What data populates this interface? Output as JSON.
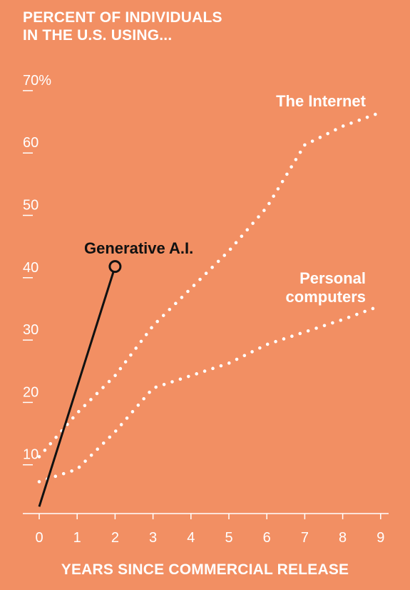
{
  "chart_data": {
    "type": "line",
    "title_lines": [
      "PERCENT OF INDIVIDUALS",
      "IN THE U.S. USING..."
    ],
    "xlabel": "YEARS SINCE COMMERCIAL RELEASE",
    "ylabel": "",
    "xlim": [
      0,
      9
    ],
    "ylim": [
      0,
      70
    ],
    "x_ticks": [
      "0",
      "1",
      "2",
      "3",
      "4",
      "5",
      "6",
      "7",
      "8",
      "9"
    ],
    "y_ticks": [
      "10",
      "20",
      "30",
      "40",
      "50",
      "60",
      "70%"
    ],
    "y_tick_values": [
      10,
      20,
      30,
      40,
      50,
      60,
      70
    ],
    "grid": false,
    "series": [
      {
        "name": "The Internet",
        "label_lines": [
          "The Internet"
        ],
        "style": "dotted",
        "color": "#ffffff",
        "x": [
          0,
          1,
          2,
          3,
          4,
          5,
          6,
          7,
          8,
          8.9
        ],
        "y": [
          9,
          16,
          22,
          30,
          36,
          42,
          49,
          59,
          62,
          64
        ]
      },
      {
        "name": "Personal computers",
        "label_lines": [
          "Personal",
          "computers"
        ],
        "style": "dotted",
        "color": "#ffffff",
        "x": [
          0,
          0.5,
          1,
          2,
          3,
          4,
          5,
          6,
          7,
          8,
          8.9
        ],
        "y": [
          5,
          6,
          7,
          13,
          20,
          22,
          24,
          27,
          29,
          31,
          33
        ]
      },
      {
        "name": "Generative A.I.",
        "label_lines": [
          "Generative A.I."
        ],
        "style": "solid",
        "color": "#111111",
        "x": [
          0,
          2
        ],
        "y": [
          1,
          39.5
        ],
        "end_marker": "circle"
      }
    ]
  }
}
